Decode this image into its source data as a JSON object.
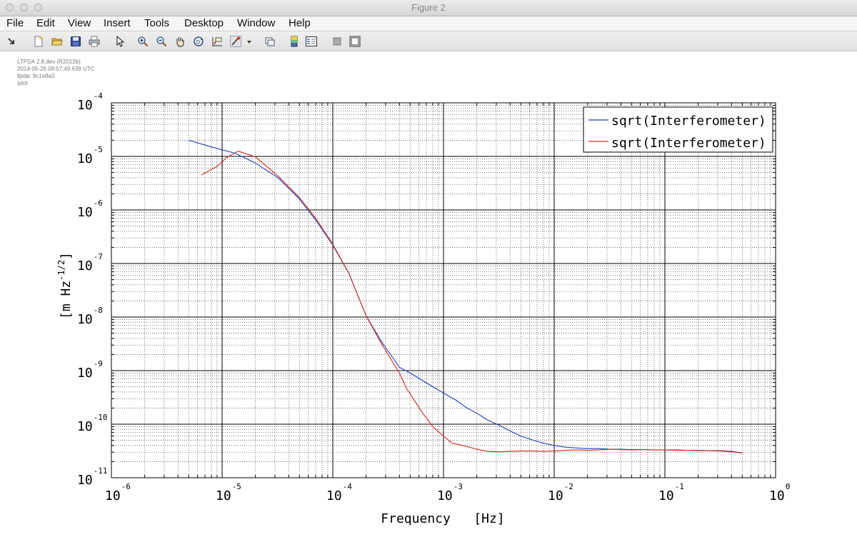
{
  "window": {
    "title": "Figure 2"
  },
  "menu": [
    "File",
    "Edit",
    "View",
    "Insert",
    "Tools",
    "Desktop",
    "Window",
    "Help"
  ],
  "toolbar": {
    "icons": [
      "dock-arrow-icon",
      "new-figure-icon",
      "open-file-icon",
      "save-icon",
      "print-icon",
      "pointer-icon",
      "zoom-in-icon",
      "zoom-out-icon",
      "pan-hand-icon",
      "rotate-3d-icon",
      "data-cursor-icon",
      "brush-icon",
      "brush-dropdown-icon",
      "link-plot-icon",
      "colorbar-icon",
      "legend-icon",
      "hide-plot-tools-icon",
      "show-plot-tools-icon"
    ]
  },
  "annotation": [
    "LTPDA 2.8.dev (R2012b)",
    "2014-05-26 09:57:49.639 UTC",
    "ltpda: 9c1e8a3",
    "iplot"
  ],
  "colors": {
    "series1": "#1f3fbf",
    "series2": "#d42a1a",
    "grid_major": "#000000",
    "grid_minor": "#555555"
  },
  "chart_data": {
    "type": "line",
    "xscale": "log",
    "yscale": "log",
    "xlim": [
      1e-06,
      1
    ],
    "ylim": [
      1e-11,
      0.0001
    ],
    "xlabel": "Frequency   [Hz]",
    "ylabel": "[m Hz^-1/2]",
    "ylabel_parts": {
      "base": "[m Hz",
      "exp": "-1/2",
      "close": "]"
    },
    "xticks": [
      {
        "base": "10",
        "exp": "-6"
      },
      {
        "base": "10",
        "exp": "-5"
      },
      {
        "base": "10",
        "exp": "-4"
      },
      {
        "base": "10",
        "exp": "-3"
      },
      {
        "base": "10",
        "exp": "-2"
      },
      {
        "base": "10",
        "exp": "-1"
      },
      {
        "base": "10",
        "exp": "0"
      }
    ],
    "yticks": [
      {
        "base": "10",
        "exp": "-4"
      },
      {
        "base": "10",
        "exp": "-5"
      },
      {
        "base": "10",
        "exp": "-6"
      },
      {
        "base": "10",
        "exp": "-7"
      },
      {
        "base": "10",
        "exp": "-8"
      },
      {
        "base": "10",
        "exp": "-9"
      },
      {
        "base": "10",
        "exp": "-10"
      },
      {
        "base": "10",
        "exp": "-11"
      }
    ],
    "grid": "major and minor",
    "legend_position": "top-right",
    "series": [
      {
        "name": "sqrt(Interferometer)",
        "color": "#1f3fbf",
        "x": [
          5e-06,
          8e-06,
          1.3e-05,
          2e-05,
          3.2e-05,
          5e-05,
          7e-05,
          0.0001,
          0.00014,
          0.0002,
          0.00028,
          0.0004,
          0.0005,
          0.00065,
          0.0008,
          0.001,
          0.0013,
          0.0016,
          0.002,
          0.0025,
          0.0032,
          0.004,
          0.005,
          0.0065,
          0.008,
          0.01,
          0.013,
          0.016,
          0.02,
          0.025,
          0.032,
          0.04,
          0.05,
          0.065,
          0.08,
          0.1,
          0.13,
          0.16,
          0.2,
          0.25,
          0.32,
          0.4,
          0.5
        ],
        "y": [
          2e-05,
          1.5e-05,
          1.15e-05,
          7.5e-06,
          4e-06,
          1.6e-06,
          6.5e-07,
          2.2e-07,
          6.5e-08,
          1.05e-08,
          3.3e-09,
          1.15e-09,
          9e-10,
          6.5e-10,
          5e-10,
          3.8e-10,
          2.8e-10,
          2.05e-10,
          1.6e-10,
          1.2e-10,
          9.5e-11,
          7.5e-11,
          6e-11,
          5e-11,
          4.4e-11,
          4e-11,
          3.7e-11,
          3.6e-11,
          3.5e-11,
          3.5e-11,
          3.4e-11,
          3.4e-11,
          3.35e-11,
          3.35e-11,
          3.3e-11,
          3.3e-11,
          3.3e-11,
          3.25e-11,
          3.25e-11,
          3.2e-11,
          3.2e-11,
          3.1e-11,
          2.9e-11
        ]
      },
      {
        "name": "sqrt(Interferometer)",
        "color": "#d42a1a",
        "x": [
          6.5e-06,
          9e-06,
          1.1e-05,
          1.4e-05,
          2e-05,
          3.2e-05,
          5e-05,
          7e-05,
          0.0001,
          0.00014,
          0.0002,
          0.00028,
          0.0004,
          0.00046,
          0.00055,
          0.00065,
          0.0008,
          0.001,
          0.0012,
          0.0015,
          0.002,
          0.0025,
          0.0032,
          0.004,
          0.005,
          0.0065,
          0.008,
          0.01,
          0.013,
          0.016,
          0.02,
          0.025,
          0.032,
          0.04,
          0.05,
          0.065,
          0.08,
          0.1,
          0.13,
          0.16,
          0.2,
          0.25,
          0.32,
          0.4,
          0.5
        ],
        "y": [
          4.5e-06,
          6.5e-06,
          9.5e-06,
          1.25e-05,
          9.8e-06,
          4.3e-06,
          1.7e-06,
          7e-07,
          2.3e-07,
          6.5e-08,
          1.05e-08,
          3e-09,
          9e-10,
          4.8e-10,
          2.7e-10,
          1.6e-10,
          9e-11,
          6e-11,
          4.4e-11,
          4e-11,
          3.4e-11,
          3.1e-11,
          3.05e-11,
          3.1e-11,
          3.15e-11,
          3.15e-11,
          3.1e-11,
          3.15e-11,
          3.25e-11,
          3.3e-11,
          3.25e-11,
          3.3e-11,
          3.4e-11,
          3.35e-11,
          3.3e-11,
          3.35e-11,
          3.3e-11,
          3.3e-11,
          3.25e-11,
          3.25e-11,
          3.2e-11,
          3.2e-11,
          3.15e-11,
          3.05e-11,
          2.9e-11
        ]
      }
    ]
  }
}
